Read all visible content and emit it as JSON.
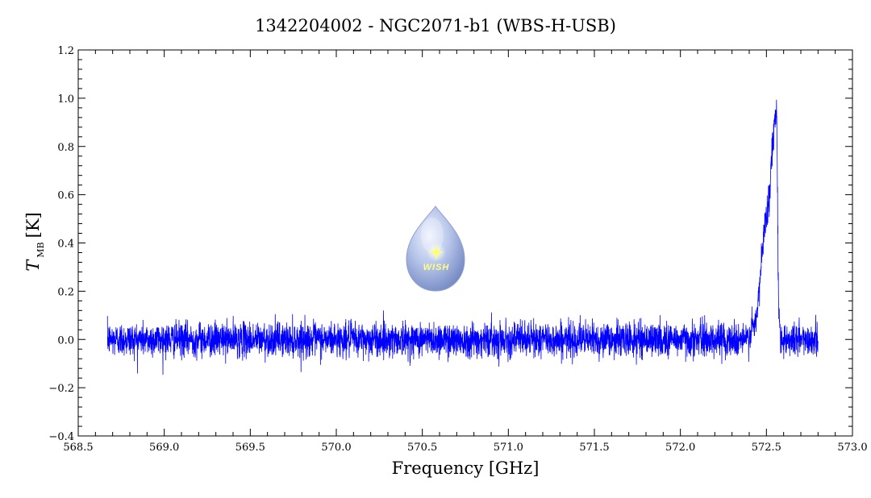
{
  "chart_data": {
    "type": "line",
    "title": "1342204002 - NGC2071-b1 (WBS-H-USB)",
    "xlabel": "Frequency [GHz]",
    "ylabel": {
      "symbol": "T",
      "subscript": "MB",
      "unit": "[K]"
    },
    "xlim": [
      568.5,
      573.0
    ],
    "ylim": [
      -0.4,
      1.2
    ],
    "x_ticks": [
      568.5,
      569.0,
      569.5,
      570.0,
      570.5,
      571.0,
      571.5,
      572.0,
      572.5,
      573.0
    ],
    "x_tick_labels": [
      "568.5",
      "569.0",
      "569.5",
      "570.0",
      "570.5",
      "571.0",
      "571.5",
      "572.0",
      "572.5",
      "573.0"
    ],
    "y_ticks": [
      -0.4,
      -0.2,
      0.0,
      0.2,
      0.4,
      0.6,
      0.8,
      1.0,
      1.2
    ],
    "y_tick_labels": [
      "−0.4",
      "−0.2",
      "0.0",
      "0.2",
      "0.4",
      "0.6",
      "0.8",
      "1.0",
      "1.2"
    ],
    "series": [
      {
        "color": "#0000ff",
        "x_range": [
          568.67,
          572.8
        ],
        "noise_rms": 0.035,
        "line_profile": [
          {
            "x": 572.4,
            "y": 0.02
          },
          {
            "x": 572.44,
            "y": 0.07
          },
          {
            "x": 572.46,
            "y": 0.22
          },
          {
            "x": 572.48,
            "y": 0.4
          },
          {
            "x": 572.5,
            "y": 0.52
          },
          {
            "x": 572.52,
            "y": 0.62
          },
          {
            "x": 572.535,
            "y": 0.8
          },
          {
            "x": 572.55,
            "y": 0.93
          },
          {
            "x": 572.56,
            "y": 0.97
          },
          {
            "x": 572.57,
            "y": 0.15
          },
          {
            "x": 572.58,
            "y": 0.03
          }
        ]
      }
    ],
    "grid": false,
    "logo": {
      "text": "WISH",
      "icon": "wish-drop-logo"
    }
  }
}
